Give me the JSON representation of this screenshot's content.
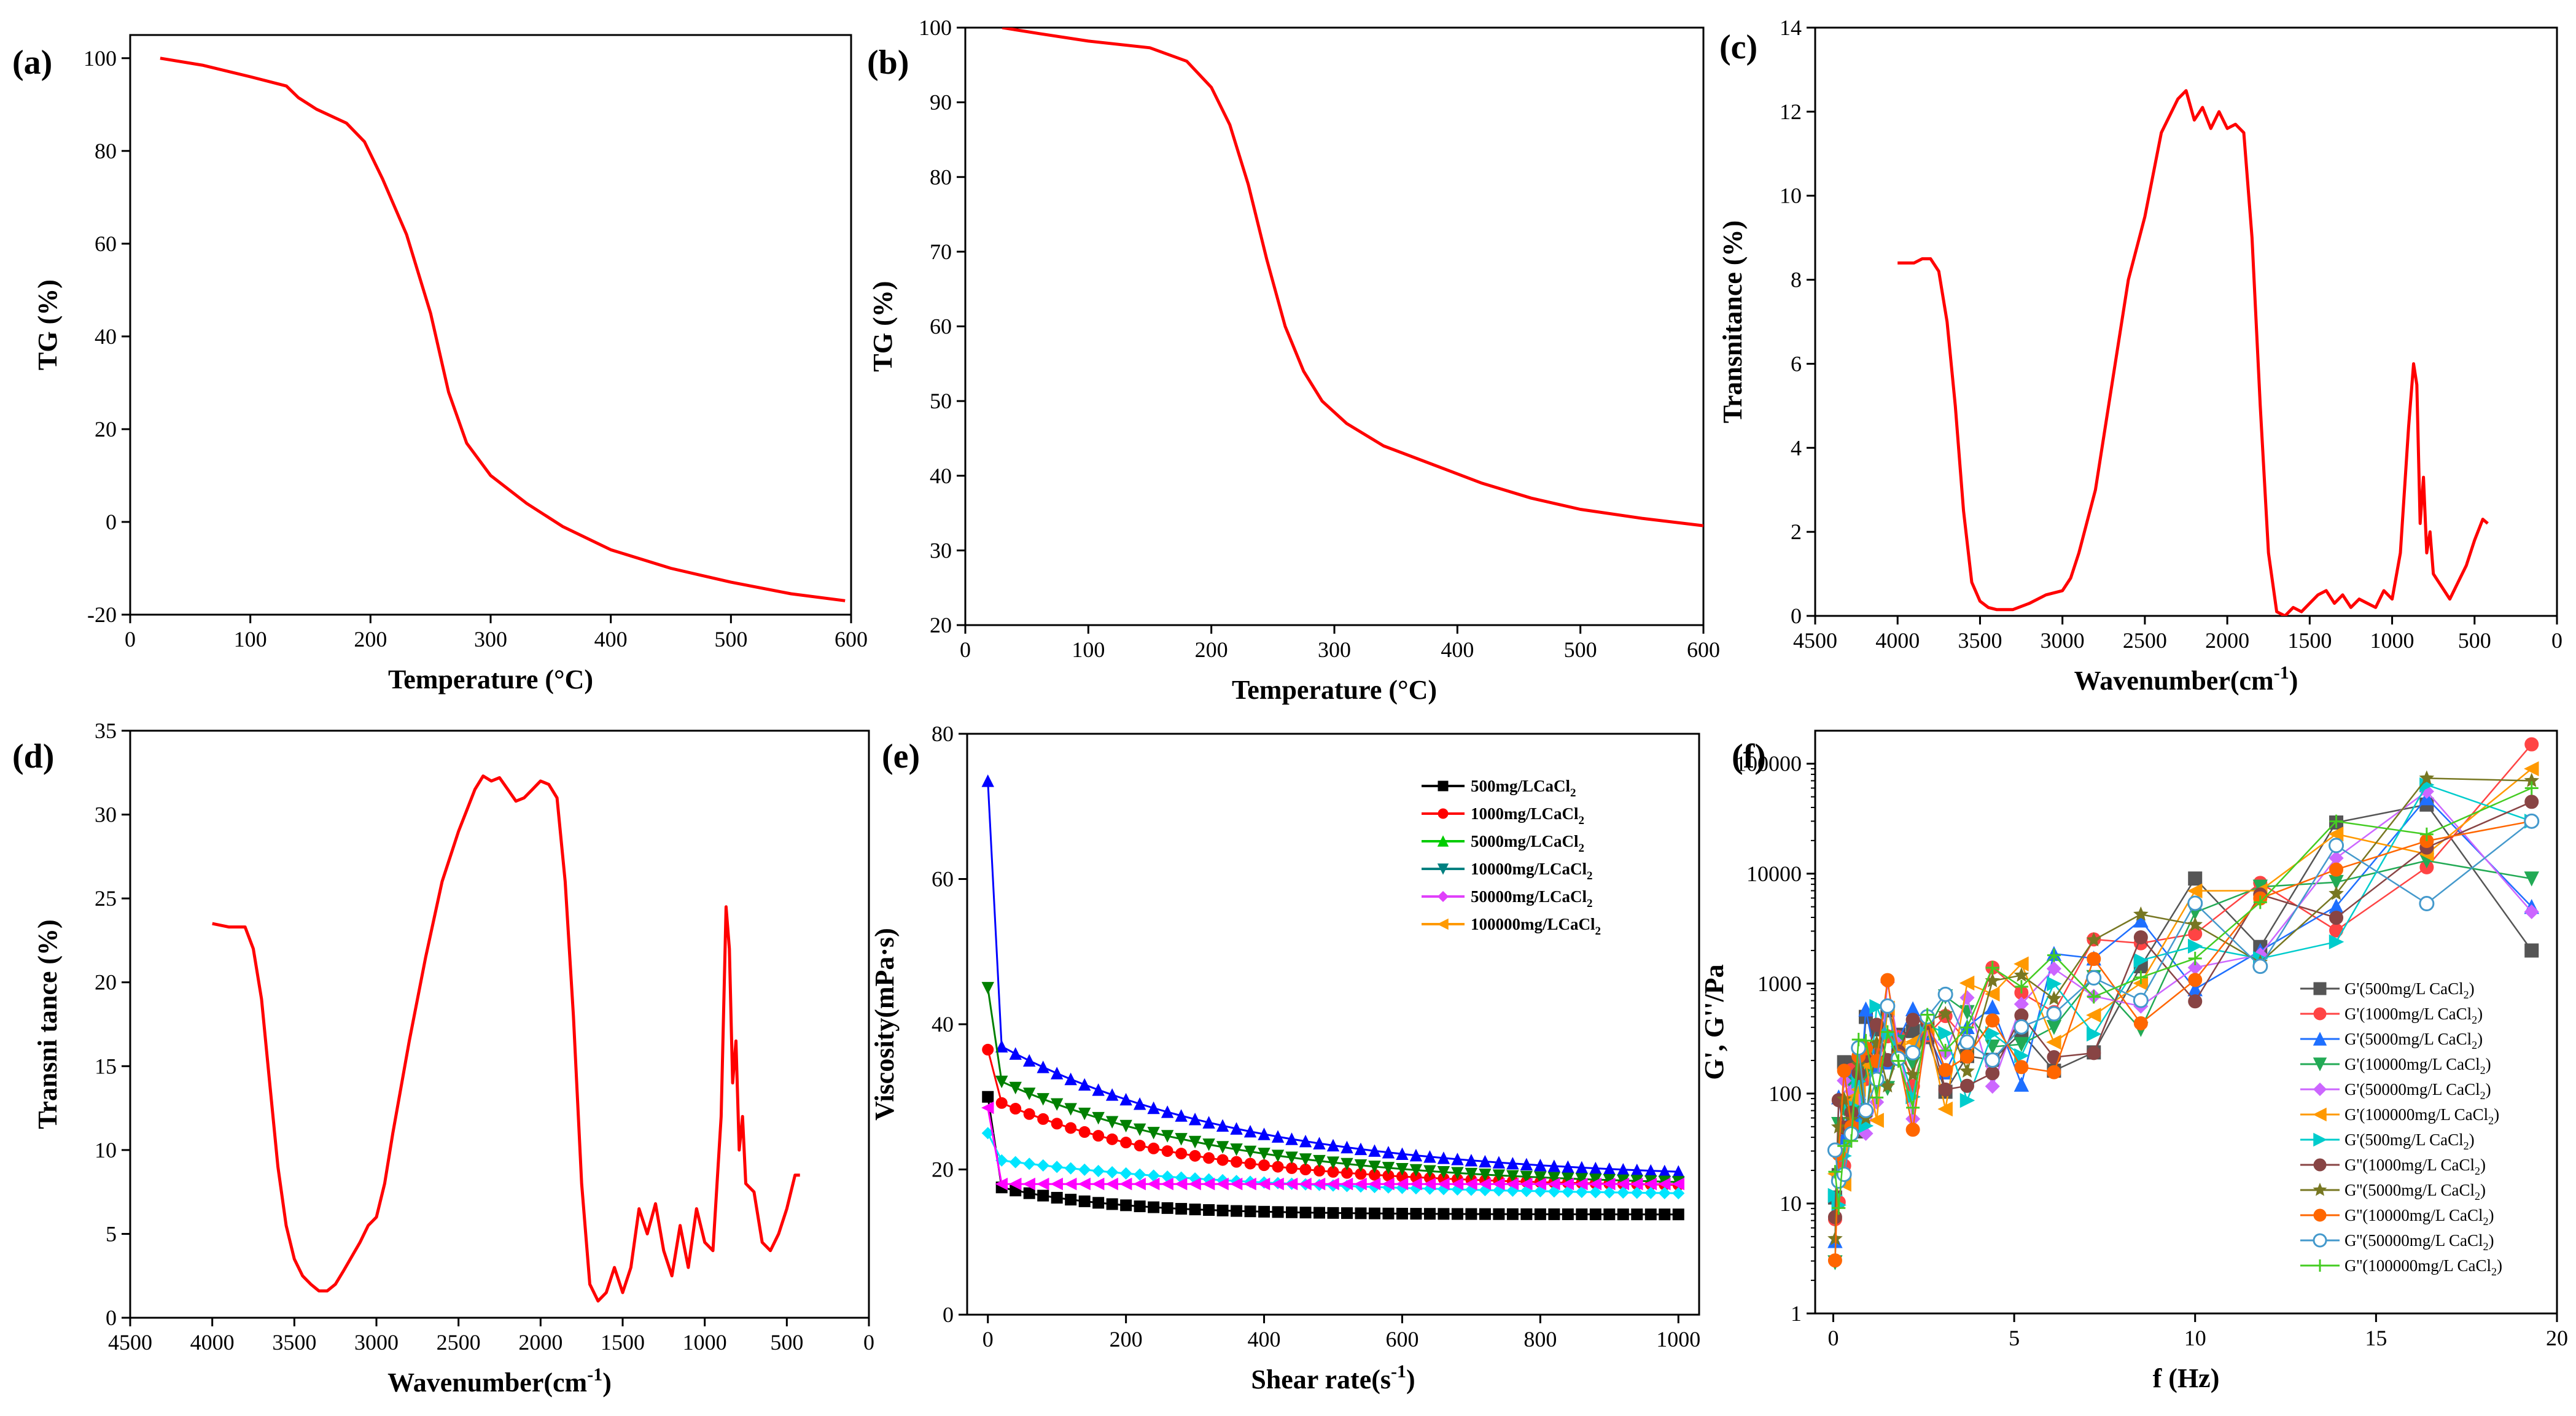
{
  "chart_data": [
    {
      "id": "a",
      "type": "line",
      "panel_label": "(a)",
      "xlabel": "Temperature (°C)",
      "ylabel": "TG (%)",
      "xlim": [
        0,
        600
      ],
      "ylim": [
        -20,
        105
      ],
      "xticks": [
        0,
        100,
        200,
        300,
        400,
        500,
        600
      ],
      "yticks": [
        -20,
        0,
        20,
        40,
        60,
        80,
        100
      ],
      "series": [
        {
          "name": "TG",
          "color": "#ff0000",
          "x": [
            25,
            60,
            100,
            130,
            140,
            155,
            180,
            195,
            210,
            230,
            250,
            265,
            280,
            300,
            330,
            360,
            400,
            450,
            500,
            550,
            595
          ],
          "y": [
            100,
            98.5,
            96,
            94,
            91.5,
            89,
            86,
            82,
            74,
            62,
            45,
            28,
            17,
            10,
            4,
            -1,
            -6,
            -10,
            -13,
            -15.5,
            -17
          ]
        }
      ]
    },
    {
      "id": "b",
      "type": "line",
      "panel_label": "(b)",
      "xlabel": "Temperature (°C)",
      "ylabel": "TG (%)",
      "xlim": [
        0,
        600
      ],
      "ylim": [
        20,
        100
      ],
      "xticks": [
        0,
        100,
        200,
        300,
        400,
        500,
        600
      ],
      "yticks": [
        20,
        30,
        40,
        50,
        60,
        70,
        80,
        90,
        100
      ],
      "series": [
        {
          "name": "TG",
          "color": "#ff0000",
          "x": [
            30,
            60,
            100,
            150,
            180,
            200,
            215,
            230,
            245,
            260,
            275,
            290,
            310,
            340,
            380,
            420,
            460,
            500,
            550,
            600
          ],
          "y": [
            100,
            99.2,
            98.2,
            97.3,
            95.5,
            92,
            87,
            79,
            69,
            60,
            54,
            50,
            47,
            44,
            41.5,
            39,
            37,
            35.5,
            34.3,
            33.3
          ]
        }
      ]
    },
    {
      "id": "c",
      "type": "line",
      "panel_label": "(c)",
      "xlabel": "Wavenumber(cm",
      "xlabel_sup": "-1",
      "xlabel_end": ")",
      "ylabel": "Transnitance (%)",
      "xlim": [
        4500,
        0
      ],
      "ylim": [
        0,
        14
      ],
      "xticks": [
        4500,
        4000,
        3500,
        3000,
        2500,
        2000,
        1500,
        1000,
        500,
        0
      ],
      "yticks": [
        0,
        2,
        4,
        6,
        8,
        10,
        12,
        14
      ],
      "series": [
        {
          "name": "FTIR",
          "color": "#ff0000",
          "x": [
            4000,
            3900,
            3850,
            3800,
            3750,
            3700,
            3650,
            3600,
            3550,
            3500,
            3450,
            3400,
            3300,
            3200,
            3100,
            3000,
            2950,
            2900,
            2800,
            2700,
            2600,
            2500,
            2400,
            2300,
            2250,
            2200,
            2150,
            2100,
            2050,
            2000,
            1950,
            1900,
            1850,
            1800,
            1750,
            1700,
            1650,
            1600,
            1550,
            1500,
            1450,
            1400,
            1350,
            1300,
            1250,
            1200,
            1150,
            1100,
            1050,
            1000,
            950,
            900,
            870,
            850,
            830,
            810,
            790,
            770,
            750,
            700,
            650,
            600,
            550,
            500,
            450,
            420
          ],
          "y": [
            8.4,
            8.4,
            8.5,
            8.5,
            8.2,
            7.0,
            5.0,
            2.5,
            0.8,
            0.35,
            0.2,
            0.15,
            0.15,
            0.3,
            0.5,
            0.6,
            0.9,
            1.5,
            3.0,
            5.5,
            8.0,
            9.5,
            11.5,
            12.3,
            12.5,
            11.8,
            12.1,
            11.6,
            12.0,
            11.6,
            11.7,
            11.5,
            9.0,
            5.0,
            1.5,
            0.1,
            0.0,
            0.2,
            0.1,
            0.3,
            0.5,
            0.6,
            0.3,
            0.5,
            0.2,
            0.4,
            0.3,
            0.2,
            0.6,
            0.4,
            1.5,
            4.5,
            6.0,
            5.5,
            2.2,
            3.3,
            1.5,
            2.0,
            1.0,
            0.7,
            0.4,
            0.8,
            1.2,
            1.8,
            2.3,
            2.2
          ]
        }
      ]
    },
    {
      "id": "d",
      "type": "line",
      "panel_label": "(d)",
      "xlabel": "Wavenumber(cm",
      "xlabel_sup": "-1",
      "xlabel_end": ")",
      "ylabel": "Transni tance (%)",
      "xlim": [
        4500,
        0
      ],
      "ylim": [
        0,
        35
      ],
      "xticks": [
        4500,
        4000,
        3500,
        3000,
        2500,
        2000,
        1500,
        1000,
        500,
        0
      ],
      "yticks": [
        0,
        5,
        10,
        15,
        20,
        25,
        30,
        35
      ],
      "series": [
        {
          "name": "FTIR",
          "color": "#ff0000",
          "x": [
            4000,
            3900,
            3800,
            3750,
            3700,
            3650,
            3600,
            3550,
            3500,
            3450,
            3400,
            3350,
            3300,
            3250,
            3200,
            3100,
            3050,
            3000,
            2950,
            2900,
            2800,
            2700,
            2600,
            2500,
            2400,
            2350,
            2300,
            2250,
            2200,
            2150,
            2100,
            2050,
            2000,
            1950,
            1900,
            1850,
            1800,
            1750,
            1700,
            1650,
            1600,
            1550,
            1500,
            1450,
            1400,
            1350,
            1300,
            1250,
            1200,
            1150,
            1100,
            1050,
            1000,
            950,
            900,
            870,
            850,
            830,
            810,
            790,
            770,
            750,
            700,
            650,
            600,
            550,
            500,
            450,
            420
          ],
          "y": [
            23.5,
            23.3,
            23.3,
            22,
            19,
            14,
            9,
            5.5,
            3.5,
            2.5,
            2.0,
            1.6,
            1.6,
            2.0,
            2.8,
            4.5,
            5.5,
            6.0,
            8.0,
            11.0,
            16.5,
            21.5,
            26.0,
            29.0,
            31.5,
            32.3,
            32.0,
            32.2,
            31.5,
            30.8,
            31.0,
            31.5,
            32.0,
            31.8,
            31.0,
            26.0,
            18.0,
            8.0,
            2.0,
            1.0,
            1.5,
            3.0,
            1.5,
            3.0,
            6.5,
            5.0,
            6.8,
            4.0,
            2.5,
            5.5,
            3.0,
            6.5,
            4.5,
            4.0,
            12.0,
            24.5,
            22.0,
            14.0,
            16.5,
            10.0,
            12.0,
            8.0,
            7.5,
            4.5,
            4.0,
            5.0,
            6.5,
            8.5,
            8.5
          ]
        }
      ]
    },
    {
      "id": "e",
      "type": "line",
      "panel_label": "(e)",
      "xlabel": "Shear rate(s",
      "xlabel_sup": "-1",
      "xlabel_end": ")",
      "ylabel": "Viscosity(mPa·s)",
      "xlim": [
        -30,
        1030
      ],
      "ylim": [
        0,
        80
      ],
      "xticks": [
        0,
        200,
        400,
        600,
        800,
        1000
      ],
      "yticks": [
        0,
        20,
        40,
        60,
        80
      ],
      "legend_position": "top-right",
      "series": [
        {
          "name": "500mg/LCaCl",
          "sub": "2",
          "color": "#000000",
          "marker": "square",
          "start": 30.0,
          "mid": 18.0,
          "tail": 13.8,
          "k": 0.006
        },
        {
          "name": "1000mg/LCaCl",
          "sub": "2",
          "color": "#ff0000",
          "marker": "circle",
          "start": 36.5,
          "mid": 30.0,
          "tail": 17.5,
          "k": 0.0035
        },
        {
          "name": "5000mg/LCaCl",
          "sub": "2",
          "color": "#0000ff",
          "marker": "triangle-up",
          "start": 73.5,
          "mid": 38.0,
          "tail": 18.5,
          "k": 0.0028
        },
        {
          "name": "10000mg/LCaCl",
          "sub": "2",
          "color": "#008000",
          "marker": "triangle-down",
          "start": 45.0,
          "mid": 33.0,
          "tail": 17.5,
          "k": 0.003
        },
        {
          "name": "50000mg/LCaCl",
          "sub": "2",
          "color": "#00e5ff",
          "marker": "diamond",
          "start": 25.0,
          "mid": 21.5,
          "tail": 16.3,
          "k": 0.0025
        },
        {
          "name": "100000mg/LCaCl",
          "sub": "2",
          "color": "#ff00ff",
          "marker": "triangle-left",
          "start": 28.5,
          "mid": 18.0,
          "tail": 18.0,
          "k": 0.001
        }
      ],
      "legend_colors": [
        "#000000",
        "#ff0000",
        "#00cc00",
        "#008080",
        "#e040fb",
        "#ff9900"
      ]
    },
    {
      "id": "f",
      "type": "scatter-line",
      "panel_label": "(f)",
      "xlabel": "f (Hz)",
      "ylabel": "G', G''/Pa",
      "xlim": [
        -0.5,
        20
      ],
      "ylim_log10": [
        0,
        5.3
      ],
      "yscale": "log",
      "xticks": [
        0,
        5,
        10,
        15,
        20
      ],
      "yticks": [
        1,
        10,
        100,
        1000,
        10000,
        100000
      ],
      "legend_position": "bottom-right",
      "series": [
        {
          "name": "G'(500mg/L CaCl",
          "sub": "2",
          "end": ")",
          "color": "#555555",
          "marker": "square",
          "seed": 1,
          "fhi": 2000
        },
        {
          "name": "G'(1000mg/L CaCl",
          "sub": "2",
          "end": ")",
          "color": "#ff4444",
          "marker": "circle",
          "seed": 2,
          "fhi": 150000
        },
        {
          "name": "G'(5000mg/L CaCl",
          "sub": "2",
          "end": ")",
          "color": "#1e6fff",
          "marker": "triangle-up",
          "seed": 3,
          "fhi": 5000
        },
        {
          "name": "G'(10000mg/L CaCl",
          "sub": "2",
          "end": ")",
          "color": "#22aa55",
          "marker": "triangle-down",
          "seed": 4,
          "fhi": 9000
        },
        {
          "name": "G'(50000mg/L CaCl",
          "sub": "2",
          "end": ")",
          "color": "#cc66ff",
          "marker": "diamond",
          "seed": 5,
          "fhi": 4500
        },
        {
          "name": "G'(100000mg/L CaCl",
          "sub": "2",
          "end": ")",
          "color": "#ff9900",
          "marker": "triangle-left",
          "seed": 6,
          "fhi": 90000
        },
        {
          "name": "G'(500mg/L CaCl",
          "sub": "2",
          "end": ")",
          "color": "#00cccc",
          "marker": "triangle-right",
          "seed": 7,
          "fhi": 30000
        },
        {
          "name": "G''(1000mg/L CaCl",
          "sub": "2",
          "end": ")",
          "color": "#884444",
          "marker": "hexagon",
          "seed": 8,
          "fhi": 45000
        },
        {
          "name": "G''(5000mg/L CaCl",
          "sub": "2",
          "end": ")",
          "color": "#777722",
          "marker": "star",
          "seed": 9,
          "fhi": 70000
        },
        {
          "name": "G''(10000mg/L CaCl",
          "sub": "2",
          "end": ")",
          "color": "#ff6600",
          "marker": "circle-filled",
          "seed": 10,
          "fhi": 30000
        },
        {
          "name": "G''(50000mg/L CaCl",
          "sub": "2",
          "end": ")",
          "color": "#4499cc",
          "marker": "circle-open",
          "seed": 11,
          "fhi": 30000
        },
        {
          "name": "G''(100000mg/L CaCl",
          "sub": "2",
          "end": ")",
          "color": "#44cc22",
          "marker": "plus",
          "seed": 12,
          "fhi": 60000
        }
      ]
    }
  ]
}
